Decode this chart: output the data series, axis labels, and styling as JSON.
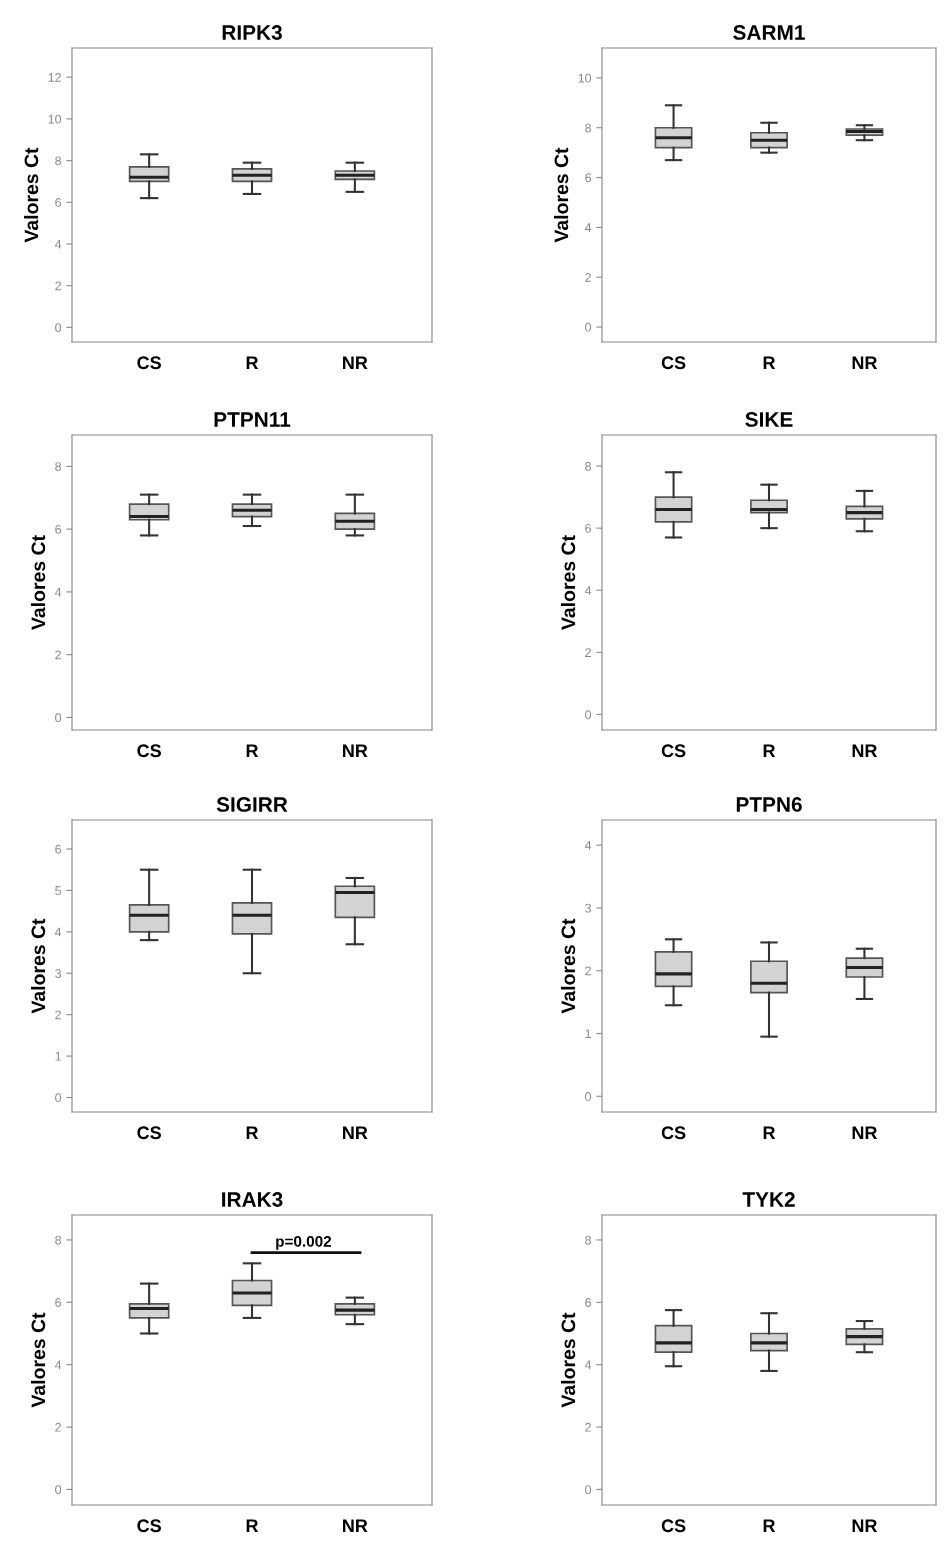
{
  "chart_data": [
    {
      "type": "box",
      "title": "RIPK3",
      "ylabel": "Valores Ct",
      "categories": [
        "CS",
        "R",
        "NR"
      ],
      "ylim": [
        -0.7,
        13.4
      ],
      "yticks": [
        0,
        2,
        4,
        6,
        8,
        10,
        12
      ],
      "grid": false,
      "color": "#d3d3d3",
      "boxes": [
        {
          "low": 6.2,
          "q1": 7.0,
          "median": 7.2,
          "q3": 7.7,
          "high": 8.3
        },
        {
          "low": 6.4,
          "q1": 7.0,
          "median": 7.3,
          "q3": 7.6,
          "high": 7.9
        },
        {
          "low": 6.5,
          "q1": 7.1,
          "median": 7.3,
          "q3": 7.5,
          "high": 7.9
        }
      ]
    },
    {
      "type": "box",
      "title": "SARM1",
      "ylabel": "Valores Ct",
      "categories": [
        "CS",
        "R",
        "NR"
      ],
      "ylim": [
        -0.6,
        11.2
      ],
      "yticks": [
        0,
        2,
        4,
        6,
        8,
        10
      ],
      "grid": false,
      "color": "#d3d3d3",
      "boxes": [
        {
          "low": 6.7,
          "q1": 7.2,
          "median": 7.6,
          "q3": 8.0,
          "high": 8.9
        },
        {
          "low": 7.0,
          "q1": 7.2,
          "median": 7.5,
          "q3": 7.8,
          "high": 8.2
        },
        {
          "low": 7.5,
          "q1": 7.7,
          "median": 7.85,
          "q3": 7.95,
          "high": 8.1
        }
      ]
    },
    {
      "type": "box",
      "title": "PTPN11",
      "ylabel": "Valores Ct",
      "categories": [
        "CS",
        "R",
        "NR"
      ],
      "ylim": [
        -0.4,
        9.0
      ],
      "yticks": [
        0,
        2,
        4,
        6,
        8
      ],
      "grid": false,
      "color": "#d3d3d3",
      "boxes": [
        {
          "low": 5.8,
          "q1": 6.3,
          "median": 6.4,
          "q3": 6.8,
          "high": 7.1
        },
        {
          "low": 6.1,
          "q1": 6.4,
          "median": 6.6,
          "q3": 6.8,
          "high": 7.1
        },
        {
          "low": 5.8,
          "q1": 6.0,
          "median": 6.25,
          "q3": 6.5,
          "high": 7.1
        }
      ]
    },
    {
      "type": "box",
      "title": "SIKE",
      "ylabel": "Valores Ct",
      "categories": [
        "CS",
        "R",
        "NR"
      ],
      "ylim": [
        -0.5,
        9.0
      ],
      "yticks": [
        0,
        2,
        4,
        6,
        8
      ],
      "grid": false,
      "color": "#d3d3d3",
      "boxes": [
        {
          "low": 5.7,
          "q1": 6.2,
          "median": 6.6,
          "q3": 7.0,
          "high": 7.8
        },
        {
          "low": 6.0,
          "q1": 6.5,
          "median": 6.6,
          "q3": 6.9,
          "high": 7.4
        },
        {
          "low": 5.9,
          "q1": 6.3,
          "median": 6.5,
          "q3": 6.7,
          "high": 7.2
        }
      ]
    },
    {
      "type": "box",
      "title": "SIGIRR",
      "ylabel": "Valores Ct",
      "categories": [
        "CS",
        "R",
        "NR"
      ],
      "ylim": [
        -0.35,
        6.7
      ],
      "yticks": [
        0,
        1,
        2,
        3,
        4,
        5,
        6
      ],
      "grid": false,
      "color": "#d3d3d3",
      "boxes": [
        {
          "low": 3.8,
          "q1": 4.0,
          "median": 4.4,
          "q3": 4.65,
          "high": 5.5
        },
        {
          "low": 3.0,
          "q1": 3.95,
          "median": 4.4,
          "q3": 4.7,
          "high": 5.5
        },
        {
          "low": 3.7,
          "q1": 4.35,
          "median": 4.95,
          "q3": 5.1,
          "high": 5.3
        }
      ]
    },
    {
      "type": "box",
      "title": "PTPN6",
      "ylabel": "Valores Ct",
      "categories": [
        "CS",
        "R",
        "NR"
      ],
      "ylim": [
        -0.25,
        4.4
      ],
      "yticks": [
        0,
        1,
        2,
        3,
        4
      ],
      "grid": false,
      "color": "#d3d3d3",
      "boxes": [
        {
          "low": 1.45,
          "q1": 1.75,
          "median": 1.95,
          "q3": 2.3,
          "high": 2.5
        },
        {
          "low": 0.95,
          "q1": 1.65,
          "median": 1.8,
          "q3": 2.15,
          "high": 2.45
        },
        {
          "low": 1.55,
          "q1": 1.9,
          "median": 2.05,
          "q3": 2.2,
          "high": 2.35
        }
      ]
    },
    {
      "type": "box",
      "title": "IRAK3",
      "ylabel": "Valores Ct",
      "categories": [
        "CS",
        "R",
        "NR"
      ],
      "ylim": [
        -0.5,
        8.8
      ],
      "yticks": [
        0,
        2,
        4,
        6,
        8
      ],
      "grid": false,
      "color": "#d3d3d3",
      "annotations": [
        "p=0.002"
      ],
      "boxes": [
        {
          "low": 5.0,
          "q1": 5.5,
          "median": 5.8,
          "q3": 5.95,
          "high": 6.6
        },
        {
          "low": 5.5,
          "q1": 5.9,
          "median": 6.3,
          "q3": 6.7,
          "high": 7.25
        },
        {
          "low": 5.3,
          "q1": 5.6,
          "median": 5.75,
          "q3": 5.95,
          "high": 6.15
        }
      ]
    },
    {
      "type": "box",
      "title": "TYK2",
      "ylabel": "Valores Ct",
      "categories": [
        "CS",
        "R",
        "NR"
      ],
      "ylim": [
        -0.5,
        8.8
      ],
      "yticks": [
        0,
        2,
        4,
        6,
        8
      ],
      "grid": false,
      "color": "#d3d3d3",
      "boxes": [
        {
          "low": 3.95,
          "q1": 4.4,
          "median": 4.7,
          "q3": 5.25,
          "high": 5.75
        },
        {
          "low": 3.8,
          "q1": 4.45,
          "median": 4.7,
          "q3": 5.0,
          "high": 5.65
        },
        {
          "low": 4.4,
          "q1": 4.65,
          "median": 4.9,
          "q3": 5.15,
          "high": 5.4
        }
      ]
    }
  ]
}
